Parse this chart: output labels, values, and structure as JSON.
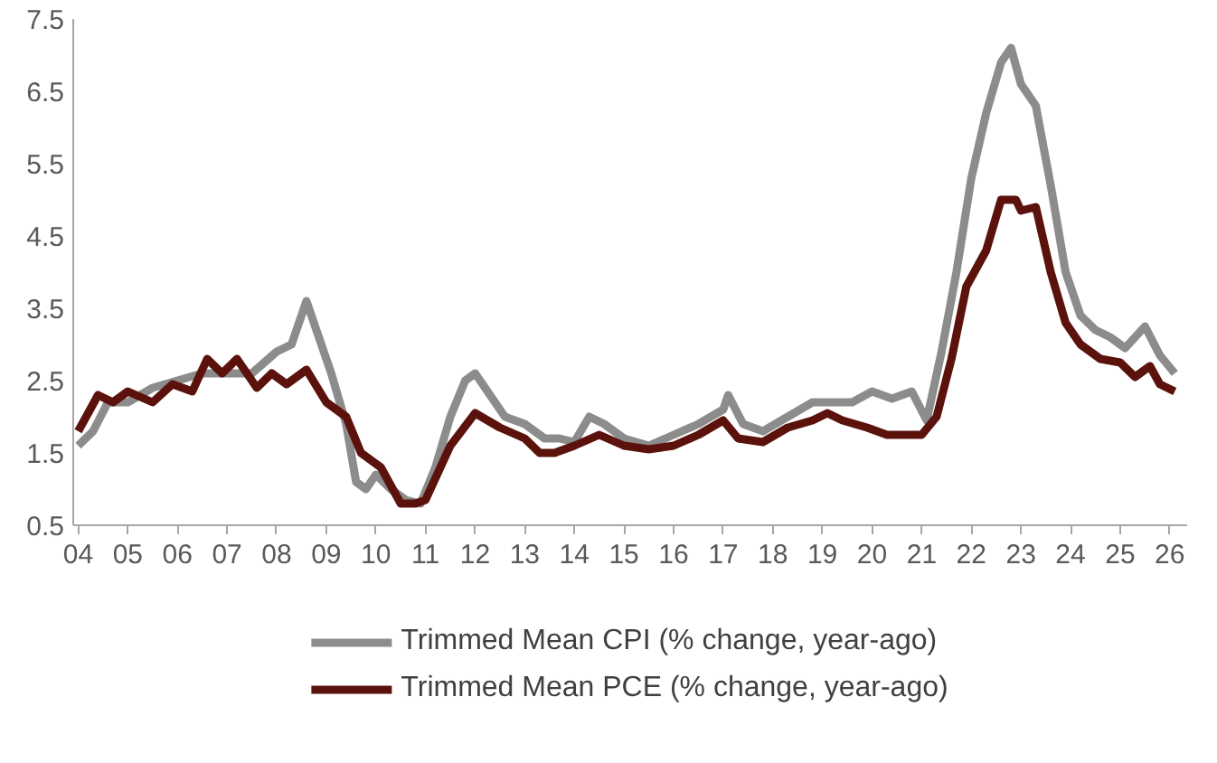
{
  "chart_data": {
    "type": "line",
    "xlim": [
      2003.9,
      2026.35
    ],
    "ylim": [
      0.5,
      7.5
    ],
    "xticks": [
      {
        "value": 2004,
        "label": "04"
      },
      {
        "value": 2005,
        "label": "05"
      },
      {
        "value": 2006,
        "label": "06"
      },
      {
        "value": 2007,
        "label": "07"
      },
      {
        "value": 2008,
        "label": "08"
      },
      {
        "value": 2009,
        "label": "09"
      },
      {
        "value": 2010,
        "label": "10"
      },
      {
        "value": 2011,
        "label": "11"
      },
      {
        "value": 2012,
        "label": "12"
      },
      {
        "value": 2013,
        "label": "13"
      },
      {
        "value": 2014,
        "label": "14"
      },
      {
        "value": 2015,
        "label": "15"
      },
      {
        "value": 2016,
        "label": "16"
      },
      {
        "value": 2017,
        "label": "17"
      },
      {
        "value": 2018,
        "label": "18"
      },
      {
        "value": 2019,
        "label": "19"
      },
      {
        "value": 2020,
        "label": "20"
      },
      {
        "value": 2021,
        "label": "21"
      },
      {
        "value": 2022,
        "label": "22"
      },
      {
        "value": 2023,
        "label": "23"
      },
      {
        "value": 2024,
        "label": "24"
      },
      {
        "value": 2025,
        "label": "25"
      },
      {
        "value": 2026,
        "label": "26"
      }
    ],
    "yticks": [
      0.5,
      1.5,
      2.5,
      3.5,
      4.5,
      5.5,
      6.5,
      7.5
    ],
    "grid": false,
    "legend": "bottom",
    "marker": "none",
    "line_style": "solid",
    "series": [
      {
        "name": "Trimmed Mean CPI (% change, year-ago)",
        "color": "#8c8c8c",
        "x": [
          2004.0,
          2004.3,
          2004.6,
          2005.0,
          2005.5,
          2006.0,
          2006.5,
          2007.0,
          2007.5,
          2008.0,
          2008.3,
          2008.6,
          2008.8,
          2009.1,
          2009.4,
          2009.6,
          2009.8,
          2010.0,
          2010.3,
          2010.6,
          2010.9,
          2011.2,
          2011.5,
          2011.8,
          2012.0,
          2012.3,
          2012.6,
          2013.0,
          2013.4,
          2013.7,
          2014.0,
          2014.3,
          2014.6,
          2015.0,
          2015.5,
          2016.0,
          2016.5,
          2017.0,
          2017.1,
          2017.4,
          2017.8,
          2018.3,
          2018.8,
          2019.2,
          2019.6,
          2020.0,
          2020.4,
          2020.8,
          2021.1,
          2021.4,
          2021.7,
          2022.0,
          2022.3,
          2022.6,
          2022.8,
          2023.0,
          2023.3,
          2023.6,
          2023.9,
          2024.2,
          2024.5,
          2024.8,
          2025.1,
          2025.5,
          2025.8,
          2026.1
        ],
        "values": [
          1.6,
          1.8,
          2.2,
          2.2,
          2.4,
          2.5,
          2.6,
          2.6,
          2.6,
          2.9,
          3.0,
          3.6,
          3.2,
          2.6,
          1.9,
          1.1,
          1.0,
          1.2,
          1.0,
          0.85,
          0.8,
          1.3,
          2.0,
          2.5,
          2.6,
          2.3,
          2.0,
          1.9,
          1.7,
          1.7,
          1.65,
          2.0,
          1.9,
          1.7,
          1.6,
          1.75,
          1.9,
          2.1,
          2.3,
          1.9,
          1.8,
          2.0,
          2.2,
          2.2,
          2.2,
          2.35,
          2.25,
          2.35,
          1.95,
          2.9,
          4.0,
          5.3,
          6.2,
          6.9,
          7.1,
          6.6,
          6.3,
          5.2,
          4.0,
          3.4,
          3.2,
          3.1,
          2.95,
          3.25,
          2.85,
          2.6
        ]
      },
      {
        "name": "Trimmed Mean PCE (% change, year-ago)",
        "color": "#5c120c",
        "x": [
          2004.0,
          2004.4,
          2004.7,
          2005.0,
          2005.5,
          2005.9,
          2006.3,
          2006.6,
          2006.9,
          2007.2,
          2007.6,
          2007.9,
          2008.2,
          2008.6,
          2009.0,
          2009.4,
          2009.7,
          2010.1,
          2010.5,
          2010.8,
          2011.0,
          2011.5,
          2012.0,
          2012.5,
          2013.0,
          2013.3,
          2013.6,
          2014.0,
          2014.5,
          2015.0,
          2015.5,
          2016.0,
          2016.5,
          2017.0,
          2017.3,
          2017.8,
          2018.3,
          2018.8,
          2019.1,
          2019.4,
          2019.9,
          2020.3,
          2020.8,
          2021.0,
          2021.3,
          2021.6,
          2021.9,
          2022.3,
          2022.6,
          2022.9,
          2023.0,
          2023.3,
          2023.6,
          2023.9,
          2024.2,
          2024.6,
          2025.0,
          2025.3,
          2025.6,
          2025.8,
          2026.1
        ],
        "values": [
          1.8,
          2.3,
          2.2,
          2.35,
          2.2,
          2.45,
          2.35,
          2.8,
          2.6,
          2.8,
          2.4,
          2.6,
          2.45,
          2.65,
          2.2,
          2.0,
          1.5,
          1.3,
          0.8,
          0.8,
          0.85,
          1.6,
          2.05,
          1.85,
          1.7,
          1.5,
          1.5,
          1.6,
          1.75,
          1.6,
          1.55,
          1.6,
          1.75,
          1.95,
          1.7,
          1.65,
          1.85,
          1.95,
          2.05,
          1.95,
          1.85,
          1.75,
          1.75,
          1.75,
          2.0,
          2.8,
          3.8,
          4.3,
          5.0,
          5.0,
          4.85,
          4.9,
          4.0,
          3.3,
          3.0,
          2.8,
          2.75,
          2.55,
          2.7,
          2.45,
          2.35
        ]
      }
    ]
  }
}
